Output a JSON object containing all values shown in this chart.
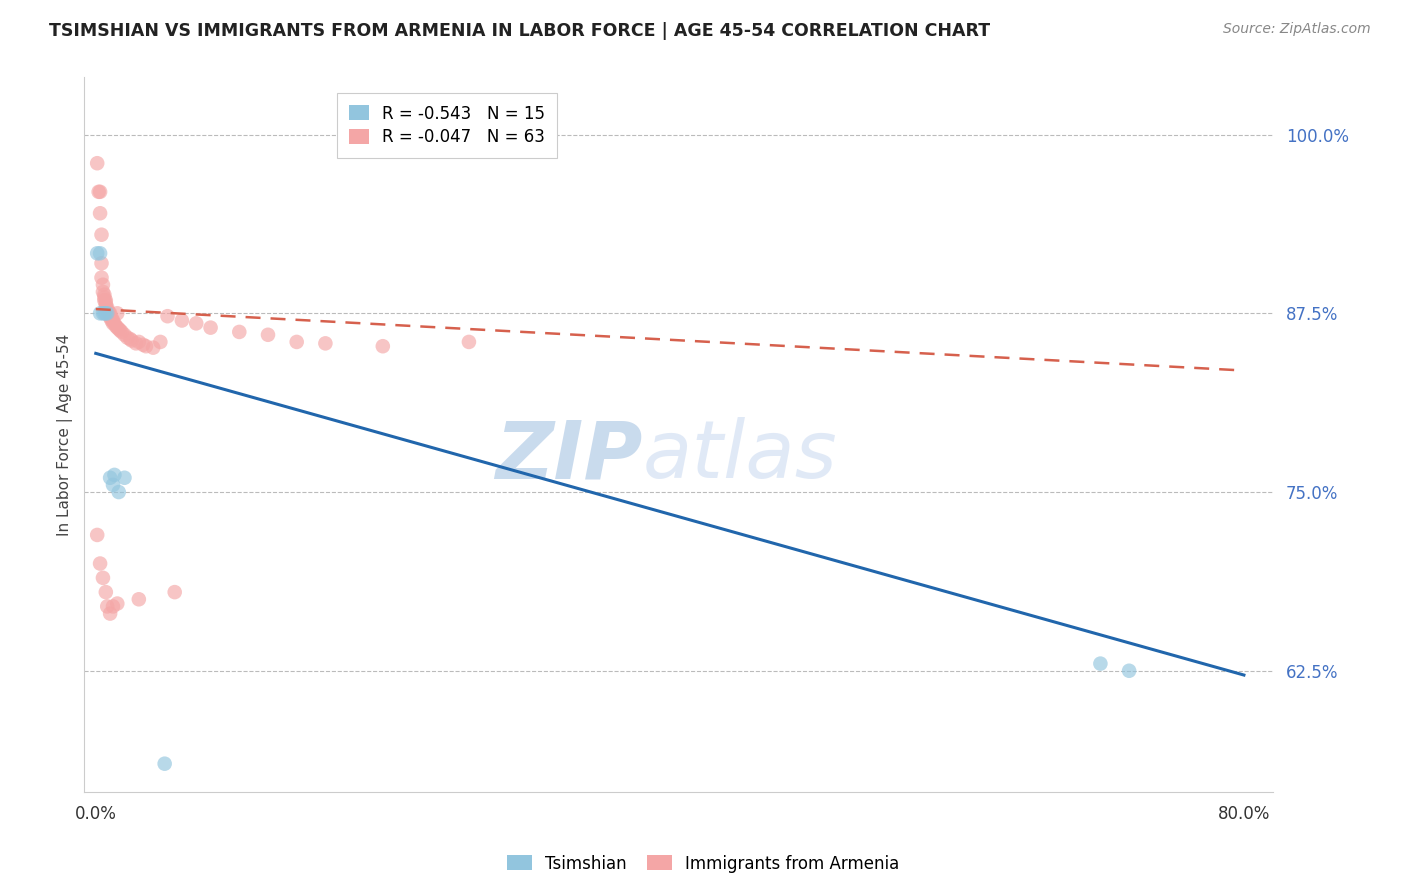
{
  "title": "TSIMSHIAN VS IMMIGRANTS FROM ARMENIA IN LABOR FORCE | AGE 45-54 CORRELATION CHART",
  "source": "Source: ZipAtlas.com",
  "ylabel": "In Labor Force | Age 45-54",
  "ylabel_ticks": [
    "62.5%",
    "75.0%",
    "87.5%",
    "100.0%"
  ],
  "ylabel_values": [
    0.625,
    0.75,
    0.875,
    1.0
  ],
  "xlim": [
    -0.008,
    0.82
  ],
  "ylim": [
    0.54,
    1.04
  ],
  "legend1_label": "R = -0.543   N = 15",
  "legend2_label": "R = -0.047   N = 63",
  "watermark_zip": "ZIP",
  "watermark_atlas": "atlas",
  "tsimshian_color": "#92c5de",
  "armenia_color": "#f4a6a6",
  "trend_tsimshian_color": "#2166ac",
  "trend_armenia_color": "#d6604d",
  "background_color": "#ffffff",
  "grid_color": "#bbbbbb",
  "tick_color": "#4472C4",
  "title_color": "#222222",
  "source_color": "#888888",
  "tsimshian_x": [
    0.001,
    0.003,
    0.003,
    0.005,
    0.006,
    0.007,
    0.008,
    0.01,
    0.012,
    0.013,
    0.016,
    0.02,
    0.048,
    0.7,
    0.72
  ],
  "tsimshian_y": [
    0.917,
    0.917,
    0.875,
    0.875,
    0.875,
    0.875,
    0.875,
    0.76,
    0.755,
    0.762,
    0.75,
    0.76,
    0.56,
    0.63,
    0.625
  ],
  "armenia_x": [
    0.001,
    0.002,
    0.003,
    0.003,
    0.004,
    0.004,
    0.004,
    0.005,
    0.005,
    0.006,
    0.006,
    0.006,
    0.007,
    0.007,
    0.007,
    0.008,
    0.008,
    0.009,
    0.009,
    0.01,
    0.01,
    0.01,
    0.011,
    0.011,
    0.012,
    0.012,
    0.013,
    0.014,
    0.015,
    0.015,
    0.016,
    0.017,
    0.018,
    0.02,
    0.022,
    0.024,
    0.025,
    0.028,
    0.03,
    0.033,
    0.035,
    0.04,
    0.045,
    0.05,
    0.06,
    0.07,
    0.08,
    0.1,
    0.12,
    0.14,
    0.16,
    0.2,
    0.26,
    0.001,
    0.003,
    0.005,
    0.007,
    0.008,
    0.01,
    0.012,
    0.015,
    0.03,
    0.055
  ],
  "armenia_y": [
    0.98,
    0.96,
    0.96,
    0.945,
    0.93,
    0.91,
    0.9,
    0.895,
    0.89,
    0.888,
    0.886,
    0.884,
    0.884,
    0.882,
    0.88,
    0.879,
    0.877,
    0.876,
    0.875,
    0.875,
    0.874,
    0.872,
    0.872,
    0.87,
    0.87,
    0.868,
    0.868,
    0.866,
    0.875,
    0.865,
    0.864,
    0.863,
    0.862,
    0.86,
    0.858,
    0.857,
    0.856,
    0.854,
    0.855,
    0.853,
    0.852,
    0.851,
    0.855,
    0.873,
    0.87,
    0.868,
    0.865,
    0.862,
    0.86,
    0.855,
    0.854,
    0.852,
    0.855,
    0.72,
    0.7,
    0.69,
    0.68,
    0.67,
    0.665,
    0.67,
    0.672,
    0.675,
    0.68
  ],
  "trend_tsimshian_x0": 0.0,
  "trend_tsimshian_x1": 0.8,
  "trend_tsimshian_y0": 0.847,
  "trend_tsimshian_y1": 0.622,
  "trend_armenia_x0": 0.0,
  "trend_armenia_x1": 0.8,
  "trend_armenia_y0": 0.878,
  "trend_armenia_y1": 0.835
}
